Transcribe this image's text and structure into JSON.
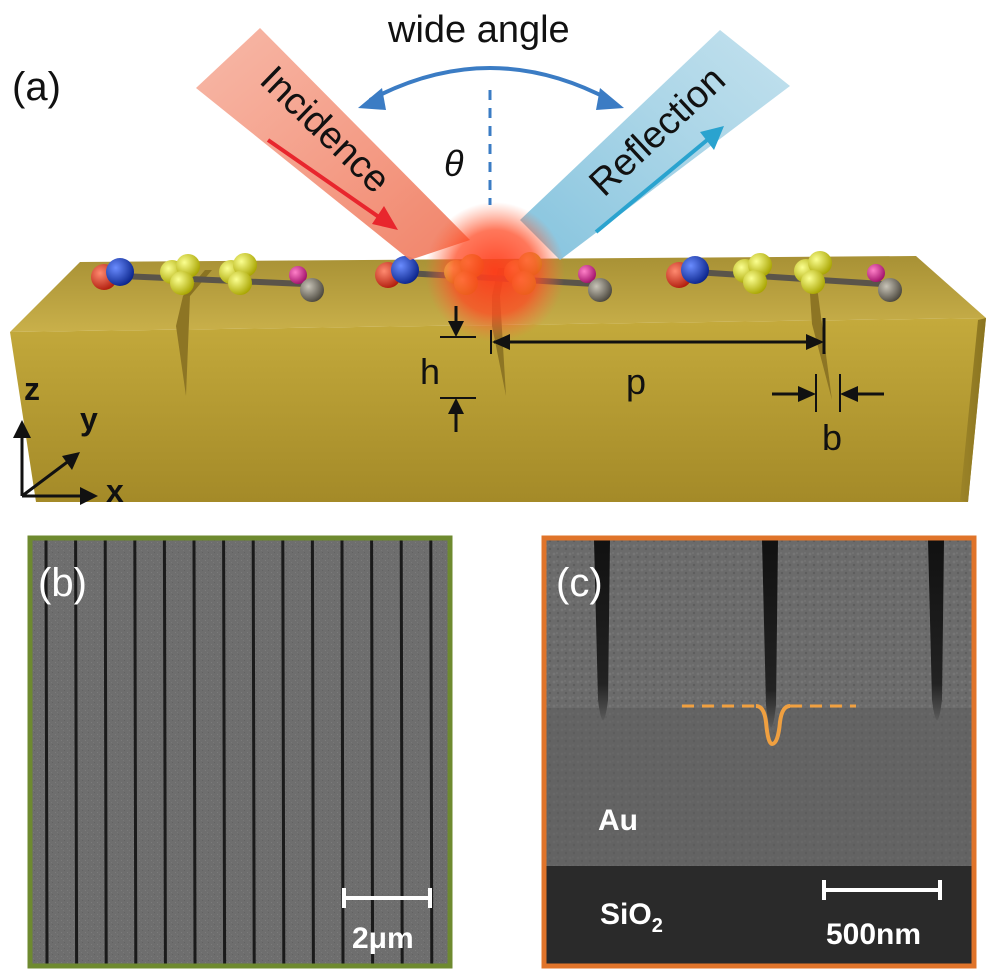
{
  "panel_a": {
    "label": "(a)",
    "wide_angle": "wide angle",
    "incidence": "Incidence",
    "reflection": "Reflection",
    "theta": "θ",
    "h": "h",
    "p": "p",
    "b": "b",
    "axis_z": "z",
    "axis_y": "y",
    "axis_x": "x"
  },
  "panel_b": {
    "label": "(b)",
    "scale_bar": "2μm",
    "border_color": "#6e8a2f"
  },
  "panel_c": {
    "label": "(c)",
    "au": "Au",
    "sio2_main": "SiO",
    "sio2_sub": "2",
    "scale_bar": "500nm",
    "border_color": "#e0742a"
  },
  "colors": {
    "gold": "#b9a13a",
    "incidence_beam": "#f08a70",
    "reflection_beam": "#8cc7de",
    "arc_arrow": "#3b7cc4",
    "incidence_arrow": "#e8262d",
    "reflection_arrow": "#2aa3cf",
    "dashed_profile": "#f0a040"
  }
}
